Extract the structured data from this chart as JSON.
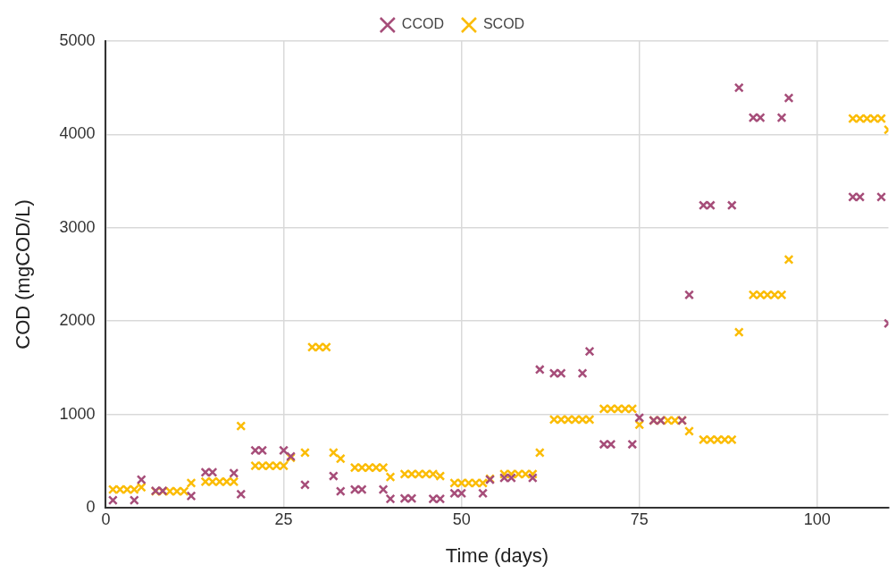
{
  "chart_data": {
    "type": "scatter",
    "xlabel": "Time (days)",
    "ylabel": "COD (mgCOD/L)",
    "xlim": [
      0,
      110
    ],
    "xticks": [
      0,
      25,
      50,
      75,
      100
    ],
    "ylim": [
      0,
      5000
    ],
    "yticks": [
      0,
      1000,
      2000,
      3000,
      4000,
      5000
    ],
    "grid": true,
    "legend": "top",
    "marker": "cross",
    "series": [
      {
        "name": "CCOD",
        "color": "#a64d79",
        "x": [
          1,
          4,
          5,
          7,
          8,
          12,
          14,
          15,
          18,
          19,
          21,
          22,
          25,
          26,
          28,
          32,
          33,
          35,
          36,
          39,
          40,
          42,
          43,
          46,
          47,
          49,
          50,
          53,
          54,
          56,
          57,
          60,
          61,
          63,
          64,
          67,
          68,
          70,
          71,
          74,
          75,
          77,
          78,
          81,
          82,
          84,
          85,
          88,
          89,
          91,
          92,
          95,
          96,
          105,
          106,
          109,
          110
        ],
        "values": [
          80,
          80,
          300,
          180,
          180,
          125,
          380,
          380,
          370,
          145,
          615,
          615,
          615,
          550,
          245,
          340,
          175,
          195,
          195,
          195,
          95,
          100,
          100,
          95,
          95,
          155,
          155,
          155,
          300,
          320,
          320,
          320,
          1480,
          1440,
          1440,
          1440,
          1675,
          680,
          680,
          680,
          965,
          935,
          935,
          935,
          2280,
          3240,
          3240,
          3240,
          4500,
          4180,
          4180,
          4180,
          4390,
          3330,
          3330,
          3330,
          1975
        ]
      },
      {
        "name": "SCOD",
        "color": "#fbbc04",
        "x": [
          1,
          2,
          3,
          4,
          5,
          7,
          8,
          9,
          10,
          11,
          12,
          14,
          15,
          16,
          17,
          18,
          19,
          21,
          22,
          23,
          24,
          25,
          26,
          28,
          29,
          30,
          31,
          32,
          33,
          35,
          36,
          37,
          38,
          39,
          40,
          42,
          43,
          44,
          45,
          46,
          47,
          49,
          50,
          51,
          52,
          53,
          54,
          56,
          57,
          58,
          59,
          60,
          61,
          63,
          64,
          65,
          66,
          67,
          68,
          70,
          71,
          72,
          73,
          74,
          75,
          77,
          78,
          79,
          80,
          81,
          82,
          84,
          85,
          86,
          87,
          88,
          89,
          91,
          92,
          93,
          94,
          95,
          96,
          105,
          106,
          107,
          108,
          109,
          110
        ],
        "values": [
          195,
          195,
          195,
          195,
          220,
          175,
          175,
          175,
          175,
          175,
          265,
          280,
          280,
          280,
          280,
          280,
          875,
          450,
          450,
          450,
          450,
          450,
          535,
          590,
          1720,
          1720,
          1720,
          590,
          525,
          430,
          430,
          430,
          430,
          430,
          330,
          360,
          360,
          360,
          360,
          360,
          340,
          265,
          265,
          265,
          265,
          265,
          310,
          360,
          360,
          360,
          360,
          360,
          590,
          945,
          945,
          945,
          945,
          945,
          945,
          1060,
          1060,
          1060,
          1060,
          1060,
          890,
          935,
          935,
          935,
          935,
          935,
          820,
          730,
          730,
          730,
          730,
          730,
          1880,
          2280,
          2280,
          2280,
          2280,
          2280,
          2660,
          4170,
          4170,
          4170,
          4170,
          4170,
          4050
        ]
      }
    ]
  }
}
